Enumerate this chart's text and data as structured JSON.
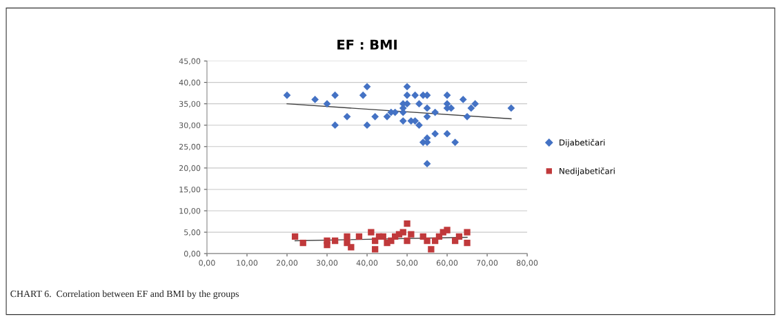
{
  "chart_data": {
    "type": "scatter",
    "title": "EF : BMI",
    "xlim": [
      0,
      80
    ],
    "xticks": [
      {
        "value": 0,
        "label": "0,00"
      },
      {
        "value": 10,
        "label": "10,00"
      },
      {
        "value": 20,
        "label": "20,00"
      },
      {
        "value": 30,
        "label": "30,00"
      },
      {
        "value": 40,
        "label": "40,00"
      },
      {
        "value": 50,
        "label": "50,00"
      },
      {
        "value": 60,
        "label": "60,00"
      },
      {
        "value": 70,
        "label": "70,00"
      },
      {
        "value": 80,
        "label": "80,00"
      }
    ],
    "ylim": [
      0,
      45
    ],
    "yticks": [
      {
        "value": 0,
        "label": "0,00"
      },
      {
        "value": 5,
        "label": "5,00"
      },
      {
        "value": 10,
        "label": "10,00"
      },
      {
        "value": 15,
        "label": "15,00"
      },
      {
        "value": 20,
        "label": "20,00"
      },
      {
        "value": 25,
        "label": "25,00"
      },
      {
        "value": 30,
        "label": "30,00"
      },
      {
        "value": 35,
        "label": "35,00"
      },
      {
        "value": 40,
        "label": "40,00"
      },
      {
        "value": 45,
        "label": "45,00"
      }
    ],
    "grid": "y",
    "legend": "right",
    "series": [
      {
        "name": "Dijabetičari",
        "color": "#4472c4",
        "marker": "diamond",
        "x": [
          20,
          27,
          30,
          32,
          32,
          35,
          39,
          40,
          40,
          42,
          45,
          46,
          47,
          49,
          49,
          49,
          49,
          50,
          50,
          50,
          51,
          52,
          52,
          53,
          53,
          54,
          54,
          55,
          55,
          55,
          55,
          55,
          55,
          57,
          57,
          60,
          60,
          60,
          60,
          61,
          62,
          64,
          65,
          66,
          67,
          76
        ],
        "values": [
          37,
          36,
          35,
          37,
          30,
          32,
          37,
          39,
          30,
          32,
          32,
          33,
          33,
          35,
          34,
          33,
          31,
          39,
          37,
          35,
          31,
          31,
          37,
          35,
          30,
          37,
          26,
          37,
          34,
          32,
          27,
          26,
          21,
          33,
          28,
          37,
          35,
          34,
          28,
          34,
          26,
          36,
          32,
          34,
          35,
          34
        ]
      },
      {
        "name": "Nedijabetičari",
        "color": "#c0393b",
        "marker": "square",
        "x": [
          22,
          24,
          30,
          30,
          32,
          35,
          35,
          36,
          38,
          41,
          42,
          42,
          43,
          44,
          45,
          46,
          47,
          48,
          49,
          50,
          50,
          51,
          54,
          55,
          56,
          57,
          58,
          59,
          60,
          62,
          63,
          65,
          65
        ],
        "values": [
          4,
          2.5,
          2,
          3,
          3,
          4,
          2.5,
          1.5,
          4,
          5,
          1,
          3,
          4,
          4,
          2.5,
          3,
          4,
          4.5,
          5,
          7,
          3,
          4.5,
          4,
          3,
          1,
          3,
          4,
          5,
          5.5,
          3,
          4,
          2.5,
          5
        ]
      },
      {
        "type": "line",
        "color": "#404040",
        "x": [
          20,
          76
        ],
        "values": [
          35,
          31.5
        ]
      },
      {
        "type": "line",
        "color": "#404040",
        "x": [
          22,
          65
        ],
        "values": [
          3,
          3.8
        ]
      }
    ],
    "annotations": [
      "CHART 6.  Correlation between EF and BMI by the groups"
    ]
  }
}
